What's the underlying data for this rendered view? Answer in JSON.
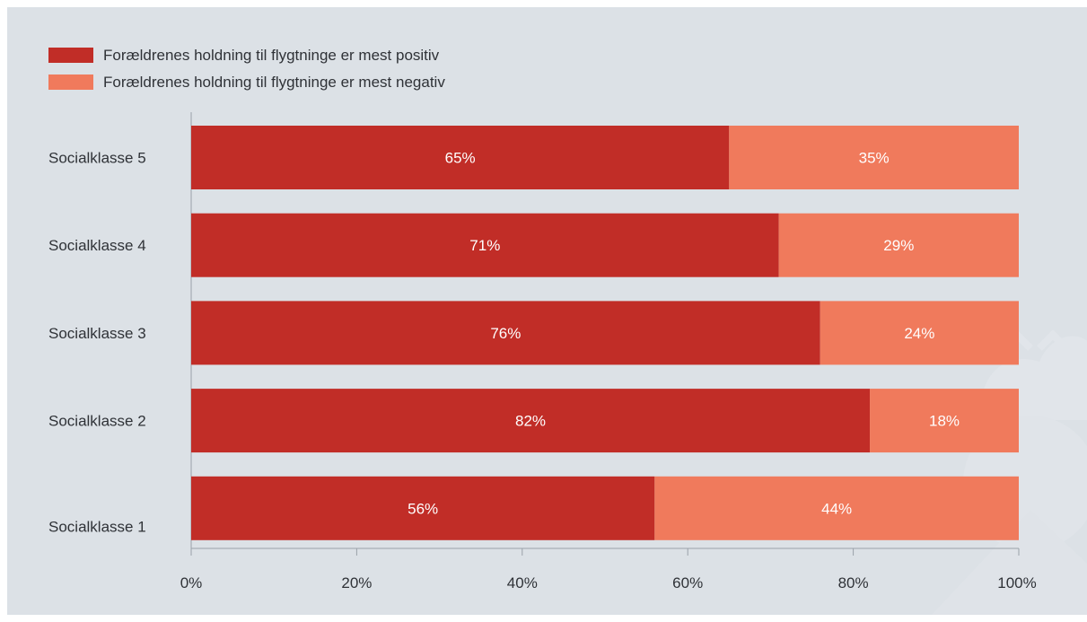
{
  "chart_data": {
    "type": "bar",
    "orientation": "horizontal",
    "stacked": true,
    "categories": [
      "Socialklasse 5",
      "Socialklasse 4",
      "Socialklasse 3",
      "Socialklasse 2",
      "Socialklasse 1"
    ],
    "series": [
      {
        "name": "Forældrenes holdning til flygtninge er mest positiv",
        "values": [
          65,
          71,
          76,
          82,
          56
        ],
        "labels": [
          "65%",
          "71%",
          "76%",
          "82%",
          "56%"
        ],
        "color": "#c12d27"
      },
      {
        "name": "Forældrenes holdning til flygtninge er mest negativ",
        "values": [
          35,
          29,
          24,
          18,
          44
        ],
        "labels": [
          "35%",
          "29%",
          "24%",
          "18%",
          "44%"
        ],
        "color": "#f07a5c"
      }
    ],
    "xlim": [
      0,
      100
    ],
    "xticks": [
      "0%",
      "20%",
      "40%",
      "60%",
      "80%",
      "100%"
    ],
    "legend_position": "top-left",
    "grid": false,
    "background": "#dce1e6"
  }
}
